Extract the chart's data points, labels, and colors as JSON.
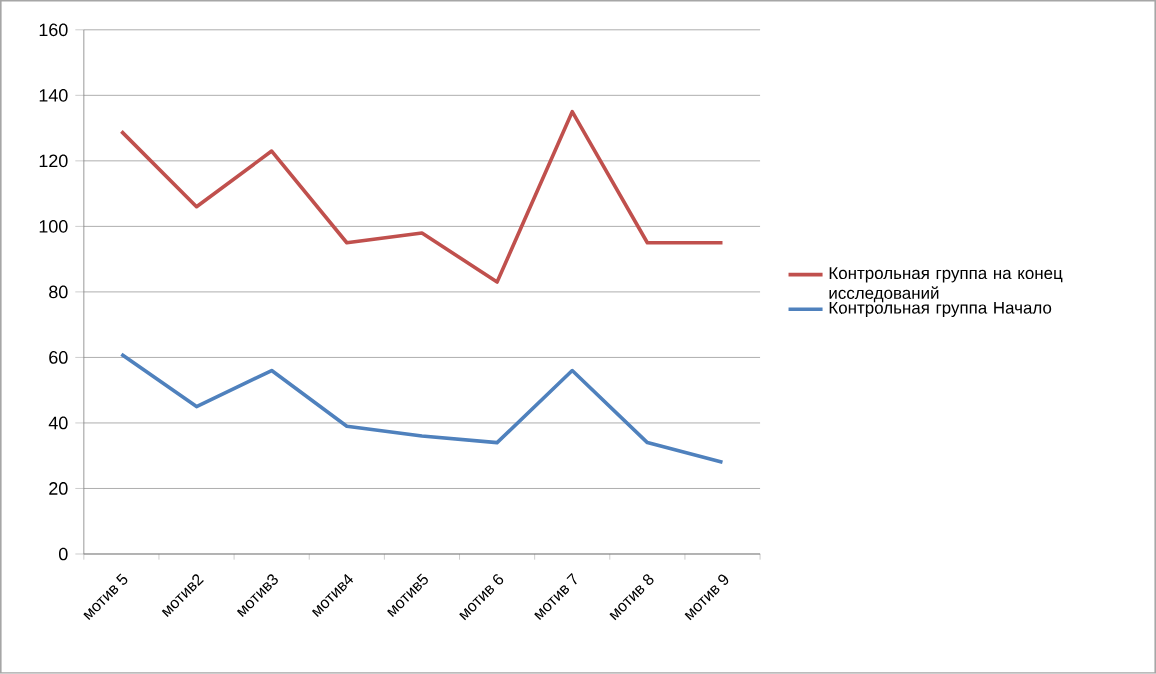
{
  "chart_data": {
    "type": "line",
    "categories": [
      "мотив 5",
      "мотив2",
      "мотив3",
      "мотив4",
      "мотив5",
      "мотив 6",
      "мотив 7",
      "мотив 8",
      "мотив 9"
    ],
    "series": [
      {
        "name": "Контрольная группа на конец исследований",
        "color": "#c0504d",
        "values": [
          129,
          106,
          123,
          95,
          98,
          83,
          135,
          95,
          95
        ]
      },
      {
        "name": "Контрольная группа Начало",
        "color": "#4f81bd",
        "values": [
          61,
          45,
          56,
          39,
          36,
          34,
          56,
          34,
          28
        ]
      }
    ],
    "ylim": [
      0,
      160
    ],
    "yticks": [
      0,
      20,
      40,
      60,
      80,
      100,
      120,
      140,
      160
    ],
    "grid": "y",
    "legend": "right",
    "marker": "none",
    "line_style": "solid"
  }
}
